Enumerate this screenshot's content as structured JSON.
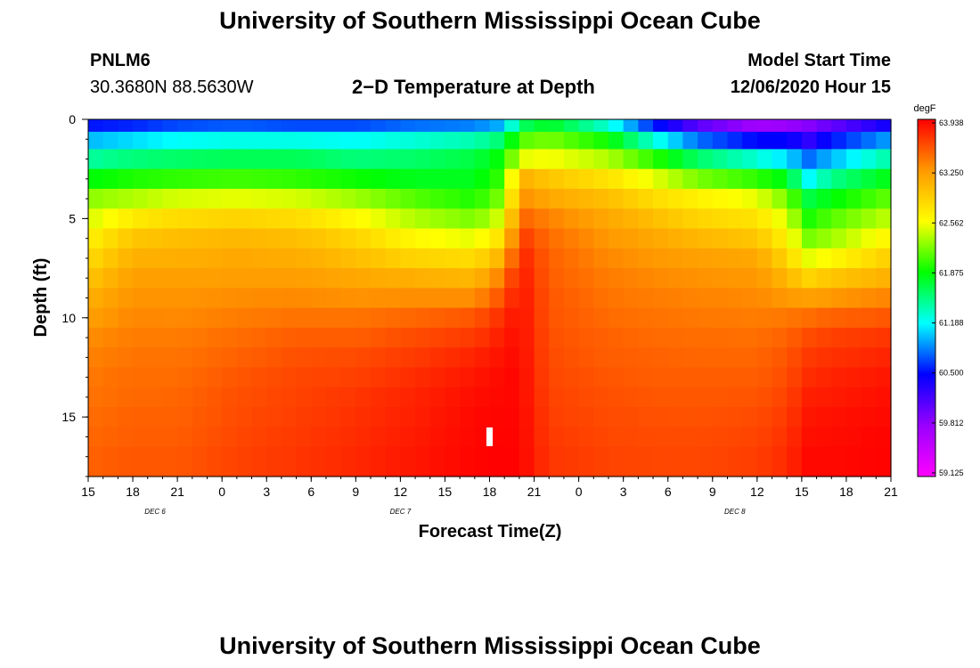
{
  "header": {
    "title": "University of Southern Mississippi Ocean Cube",
    "station_id": "PNLM6",
    "station_coords": "30.3680N 88.5630W",
    "plot_title": "2−D Temperature at Depth",
    "model_label": "Model Start Time",
    "model_start": "12/06/2020 Hour 15"
  },
  "footer": {
    "title": "University of Southern Mississippi Ocean Cube"
  },
  "chart_data": {
    "type": "heatmap",
    "title": "2−D Temperature at Depth",
    "xlabel": "Forecast Time(Z)",
    "ylabel": "Depth (ft)",
    "units": "degF",
    "x_hours_range": [
      0,
      54
    ],
    "x_tick_labels": [
      "15",
      "18",
      "21",
      "0",
      "3",
      "6",
      "9",
      "12",
      "15",
      "18",
      "21",
      "0",
      "3",
      "6",
      "9",
      "12",
      "15",
      "18",
      "21"
    ],
    "date_labels": [
      {
        "label": "DEC 6",
        "hour": 4.5
      },
      {
        "label": "DEC 7",
        "hour": 21
      },
      {
        "label": "DEC 8",
        "hour": 43.5
      }
    ],
    "y_ticks": [
      0,
      5,
      10,
      15
    ],
    "ylim": [
      0,
      18
    ],
    "color_range": [
      59.125,
      63.938
    ],
    "colorbar_ticks": [
      "63.938",
      "63.250",
      "62.562",
      "61.875",
      "61.188",
      "60.500",
      "59.812",
      "59.125"
    ],
    "colorbar_stops": [
      "#ff00ff",
      "#9900ff",
      "#0000ff",
      "#00ffff",
      "#00ff00",
      "#ffff00",
      "#ff9900",
      "#ff0000"
    ],
    "marker": {
      "hour": 27,
      "depth": 16
    },
    "depth_levels_ft": [
      0.25,
      1.0,
      2.0,
      3.0,
      4.0,
      5.0,
      6.0,
      7.0,
      8.0,
      9.0,
      10.0,
      11.0,
      12.0,
      13.0,
      14.0,
      15.0,
      16.0,
      17.0
    ],
    "profiles": [
      {
        "hour": 0,
        "t": [
          60.55,
          61.0,
          61.45,
          61.85,
          62.25,
          62.45,
          62.65,
          62.8,
          62.95,
          63.1,
          63.2,
          63.3,
          63.35,
          63.4,
          63.42,
          63.45,
          63.47,
          63.5
        ]
      },
      {
        "hour": 3,
        "t": [
          60.6,
          61.1,
          61.55,
          61.95,
          62.35,
          62.7,
          62.95,
          63.1,
          63.2,
          63.28,
          63.33,
          63.38,
          63.42,
          63.45,
          63.47,
          63.5,
          63.52,
          63.55
        ]
      },
      {
        "hour": 6,
        "t": [
          60.7,
          61.2,
          61.6,
          62.0,
          62.45,
          62.8,
          63.0,
          63.1,
          63.2,
          63.27,
          63.32,
          63.38,
          63.42,
          63.45,
          63.48,
          63.5,
          63.52,
          63.55
        ]
      },
      {
        "hour": 10,
        "t": [
          60.75,
          61.25,
          61.65,
          62.05,
          62.5,
          62.85,
          63.05,
          63.15,
          63.22,
          63.3,
          63.38,
          63.45,
          63.5,
          63.55,
          63.58,
          63.6,
          63.62,
          63.64
        ]
      },
      {
        "hour": 14,
        "t": [
          60.7,
          61.25,
          61.65,
          62.0,
          62.45,
          62.8,
          63.0,
          63.12,
          63.22,
          63.32,
          63.42,
          63.52,
          63.58,
          63.62,
          63.64,
          63.66,
          63.68,
          63.7
        ]
      },
      {
        "hour": 18,
        "t": [
          60.7,
          61.2,
          61.55,
          61.9,
          62.3,
          62.6,
          62.85,
          63.0,
          63.15,
          63.28,
          63.42,
          63.52,
          63.6,
          63.65,
          63.7,
          63.72,
          63.74,
          63.76
        ]
      },
      {
        "hour": 22,
        "t": [
          60.8,
          61.3,
          61.6,
          61.8,
          62.1,
          62.35,
          62.6,
          62.85,
          63.1,
          63.3,
          63.48,
          63.6,
          63.68,
          63.74,
          63.78,
          63.8,
          63.82,
          63.84
        ]
      },
      {
        "hour": 26,
        "t": [
          60.85,
          61.4,
          61.7,
          61.8,
          61.95,
          62.2,
          62.5,
          62.8,
          63.05,
          63.3,
          63.55,
          63.68,
          63.78,
          63.84,
          63.88,
          63.9,
          63.91,
          63.92
        ]
      },
      {
        "hour": 28,
        "t": [
          61.0,
          61.6,
          61.9,
          62.05,
          62.25,
          62.5,
          62.8,
          63.1,
          63.4,
          63.6,
          63.75,
          63.82,
          63.87,
          63.9,
          63.91,
          63.92,
          63.93,
          63.938
        ]
      },
      {
        "hour": 29,
        "t": [
          61.6,
          62.1,
          62.5,
          63.1,
          63.3,
          63.5,
          63.7,
          63.8,
          63.85,
          63.87,
          63.88,
          63.89,
          63.9,
          63.91,
          63.91,
          63.92,
          63.92,
          63.93
        ]
      },
      {
        "hour": 31,
        "t": [
          61.8,
          62.2,
          62.55,
          62.95,
          63.15,
          63.35,
          63.45,
          63.5,
          63.52,
          63.55,
          63.56,
          63.58,
          63.6,
          63.62,
          63.64,
          63.66,
          63.68,
          63.7
        ]
      },
      {
        "hour": 35,
        "t": [
          61.3,
          61.9,
          62.35,
          62.75,
          63.0,
          63.15,
          63.25,
          63.32,
          63.38,
          63.42,
          63.46,
          63.5,
          63.52,
          63.55,
          63.58,
          63.6,
          63.62,
          63.64
        ]
      },
      {
        "hour": 38,
        "t": [
          60.6,
          61.3,
          62.0,
          62.5,
          62.8,
          63.0,
          63.15,
          63.25,
          63.32,
          63.38,
          63.42,
          63.46,
          63.5,
          63.52,
          63.55,
          63.58,
          63.6,
          63.62
        ]
      },
      {
        "hour": 41,
        "t": [
          60.1,
          60.8,
          61.6,
          62.2,
          62.65,
          62.85,
          63.05,
          63.2,
          63.28,
          63.35,
          63.4,
          63.45,
          63.48,
          63.52,
          63.55,
          63.57,
          63.6,
          63.62
        ]
      },
      {
        "hour": 45,
        "t": [
          59.75,
          60.5,
          61.3,
          62.0,
          62.5,
          62.75,
          62.95,
          63.15,
          63.25,
          63.32,
          63.38,
          63.44,
          63.48,
          63.52,
          63.56,
          63.6,
          63.63,
          63.66
        ]
      },
      {
        "hour": 47,
        "t": [
          59.8,
          60.5,
          61.1,
          61.8,
          62.2,
          62.45,
          62.65,
          62.85,
          63.05,
          63.25,
          63.4,
          63.5,
          63.56,
          63.6,
          63.64,
          63.68,
          63.72,
          63.75
        ]
      },
      {
        "hour": 48.5,
        "t": [
          59.9,
          60.3,
          60.8,
          61.2,
          61.7,
          61.95,
          62.2,
          62.5,
          62.85,
          63.2,
          63.45,
          63.6,
          63.68,
          63.74,
          63.8,
          63.84,
          63.87,
          63.9
        ]
      },
      {
        "hour": 50,
        "t": [
          60.05,
          60.55,
          61.0,
          61.5,
          61.85,
          62.1,
          62.3,
          62.6,
          62.95,
          63.25,
          63.5,
          63.65,
          63.72,
          63.78,
          63.82,
          63.86,
          63.88,
          63.9
        ]
      },
      {
        "hour": 54,
        "t": [
          60.45,
          60.95,
          61.45,
          61.85,
          62.15,
          62.4,
          62.65,
          62.9,
          63.1,
          63.35,
          63.55,
          63.7,
          63.78,
          63.84,
          63.88,
          63.9,
          63.92,
          63.93
        ]
      }
    ]
  }
}
